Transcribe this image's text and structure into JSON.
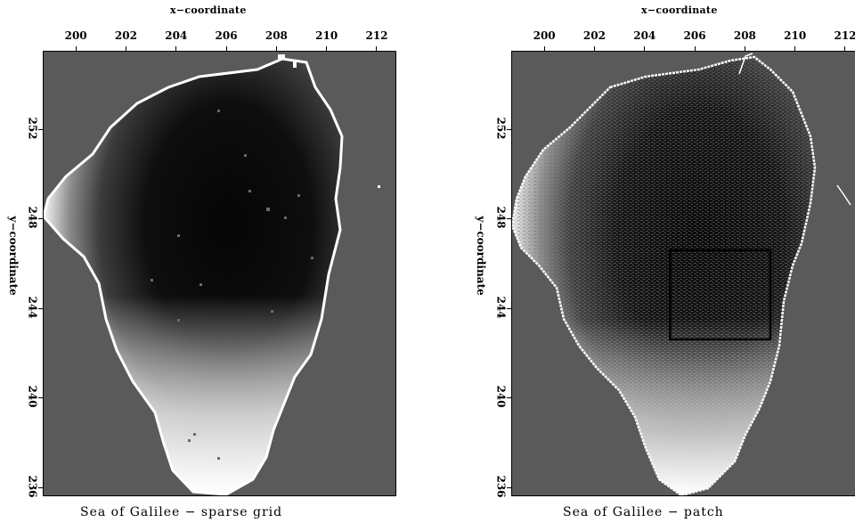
{
  "panels": [
    {
      "id": "sparse",
      "xlabel": "x−coordinate",
      "ylabel": "y−coordinate",
      "xticks": [
        "200",
        "202",
        "204",
        "206",
        "208",
        "210",
        "212"
      ],
      "yticks": [
        "252",
        "248",
        "244",
        "240",
        "236"
      ],
      "caption": "Sea of Galilee − sparse grid",
      "xlim": [
        198.7,
        212.8
      ],
      "ylim": [
        235.6,
        255.5
      ]
    },
    {
      "id": "patch",
      "xlabel": "x−coordinate",
      "ylabel": "y−coordinate",
      "xticks": [
        "200",
        "202",
        "204",
        "206",
        "208",
        "210",
        "212"
      ],
      "yticks": [
        "252",
        "248",
        "244",
        "240",
        "236"
      ],
      "caption": "Sea of Galilee − patch",
      "xlim": [
        198.7,
        212.8
      ],
      "ylim": [
        235.6,
        255.5
      ],
      "patch_box": {
        "x0": 205.0,
        "x1": 209.0,
        "y0": 242.6,
        "y1": 246.6
      }
    }
  ],
  "colors": {
    "background": "#5a5a5a",
    "lake_deep": "#080808",
    "lake_shallow": "#ffffff"
  }
}
